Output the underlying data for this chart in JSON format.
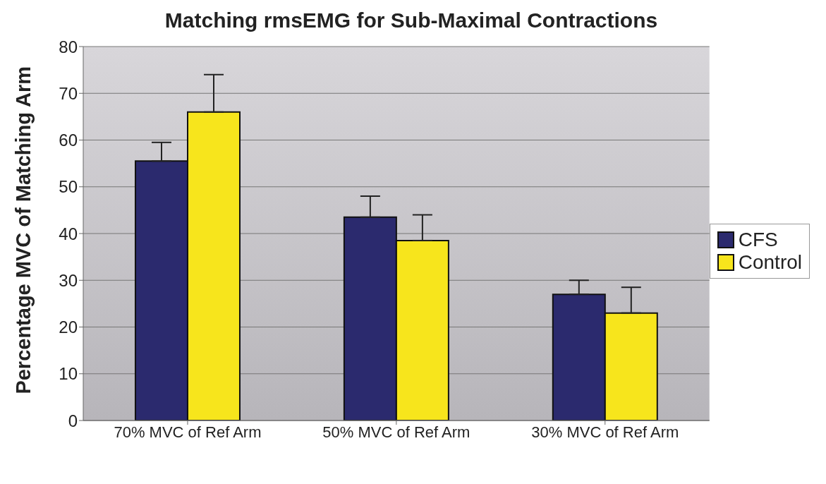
{
  "chart_data": {
    "type": "bar",
    "title": "Matching rmsEMG for Sub-Maximal Contractions",
    "ylabel": "Percentage MVC of Matching Arm",
    "categories": [
      "70% MVC of Ref Arm",
      "50% MVC of Ref Arm",
      "30% MVC of Ref Arm"
    ],
    "series": [
      {
        "name": "CFS",
        "color": "#2b2a6e",
        "values": [
          55.5,
          43.5,
          27
        ],
        "errors": [
          [
            55.5,
            59.5
          ],
          [
            43.5,
            48
          ],
          [
            27,
            30
          ]
        ]
      },
      {
        "name": "Control",
        "color": "#f7e51c",
        "values": [
          66,
          38.5,
          23
        ],
        "errors": [
          [
            66,
            74
          ],
          [
            38.5,
            44
          ],
          [
            23,
            28.5
          ]
        ]
      }
    ],
    "ylim": [
      0,
      80
    ],
    "yticks": [
      0,
      10,
      20,
      30,
      40,
      50,
      60,
      70,
      80
    ],
    "grid": "y",
    "legend": "right"
  }
}
